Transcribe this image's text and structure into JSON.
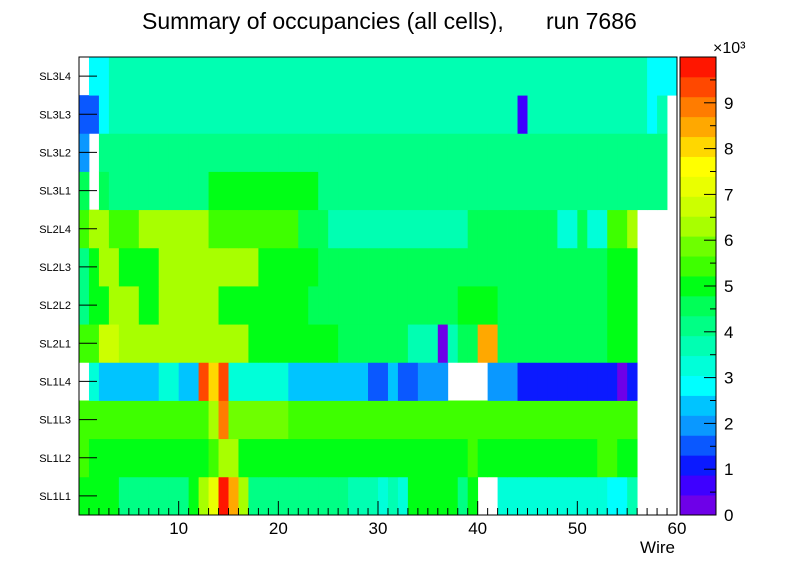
{
  "chart_data": {
    "type": "heatmap",
    "title": "Summary of occupancies (all cells),",
    "run_label": "run 7686",
    "xlabel": "Wire",
    "ylabel": "",
    "xlim": [
      0,
      60
    ],
    "x_ticks": [
      10,
      20,
      30,
      40,
      50,
      60
    ],
    "y_categories": [
      "SL1L1",
      "SL1L2",
      "SL1L3",
      "SL1L4",
      "SL2L1",
      "SL2L2",
      "SL2L3",
      "SL2L4",
      "SL3L1",
      "SL3L2",
      "SL3L3",
      "SL3L4"
    ],
    "color_scale": {
      "min": 0,
      "max": 10,
      "multiplier_label": "×10³",
      "tick_labels": [
        "0",
        "1",
        "2",
        "3",
        "4",
        "5",
        "6",
        "7",
        "8",
        "9"
      ]
    },
    "palette": [
      "#6e00e8",
      "#3e00ff",
      "#0b1aff",
      "#0a58ff",
      "#0a98ff",
      "#00c4ff",
      "#00ffff",
      "#00ffd9",
      "#00ffb2",
      "#00ff85",
      "#00ff57",
      "#00ff16",
      "#3eff00",
      "#6eff00",
      "#a8ff00",
      "#ccff00",
      "#eaff00",
      "#ffff00",
      "#ffd700",
      "#ffa800",
      "#ff7c00",
      "#ff4800",
      "#ff1600"
    ],
    "rows": [
      {
        "layer": "SL1L1",
        "values": [
          5,
          5,
          5,
          5,
          4.3,
          4.3,
          4.3,
          4.3,
          4.3,
          4.3,
          4.3,
          5,
          6.2,
          7.3,
          9.6,
          8.3,
          6.2,
          4.3,
          4.3,
          4.3,
          4.3,
          4.3,
          4.3,
          4.3,
          4.3,
          4.3,
          4.3,
          3.7,
          3.7,
          3.7,
          3.2,
          3.7,
          3.2,
          5,
          5,
          5,
          5,
          5,
          4.3,
          5,
          0,
          0,
          3.2,
          3.2,
          3.2,
          3.2,
          3.2,
          3.2,
          3.2,
          3.2,
          3.2,
          3.2,
          3.2,
          2.9,
          2.9,
          3.6,
          0,
          0,
          0,
          0
        ]
      },
      {
        "layer": "SL1L2",
        "values": [
          5.5,
          5,
          5,
          5,
          5,
          5,
          5,
          5,
          5,
          5,
          5,
          5,
          5,
          5.6,
          6.4,
          6.4,
          5,
          5,
          5,
          5,
          5,
          5,
          5,
          5,
          5,
          5,
          5,
          5,
          5,
          5,
          5,
          5,
          5,
          5,
          5,
          5,
          5,
          5,
          5,
          5.5,
          5,
          5,
          5,
          5,
          5,
          5,
          5,
          5,
          5,
          5,
          5,
          5,
          5.6,
          5.6,
          5,
          5,
          0,
          0,
          0,
          0
        ]
      },
      {
        "layer": "SL1L3",
        "values": [
          5.3,
          5.3,
          5.3,
          5.3,
          5.3,
          5.3,
          5.3,
          5.3,
          5.3,
          5.3,
          5.3,
          5.3,
          5.3,
          6.2,
          9,
          6,
          6,
          6,
          6,
          6,
          6,
          5.3,
          5.3,
          5.3,
          5.3,
          5.3,
          5.3,
          5.3,
          5.3,
          5.3,
          5.3,
          5.3,
          5.3,
          5.3,
          5.3,
          5.3,
          5.3,
          5.3,
          5.3,
          5.3,
          5.3,
          5.3,
          5.3,
          5.3,
          5.3,
          5.3,
          5.3,
          5.3,
          5.3,
          5.3,
          5.3,
          5.3,
          5.3,
          5.3,
          5.3,
          5.3,
          0,
          0,
          0,
          0
        ]
      },
      {
        "layer": "SL1L4",
        "values": [
          0,
          3.2,
          2.4,
          2.4,
          2.4,
          2.4,
          2.4,
          2.4,
          3.2,
          3.2,
          2.4,
          2.4,
          9.5,
          7.9,
          9.5,
          3.2,
          3.2,
          3.2,
          3.2,
          3.2,
          3.2,
          2.4,
          2.4,
          2.4,
          2.4,
          2.4,
          2.4,
          2.4,
          2.4,
          1.6,
          1.6,
          2.4,
          1.6,
          1.6,
          1.8,
          1.8,
          1.8,
          0,
          0,
          0,
          0,
          1.8,
          1.8,
          1.8,
          0.9,
          0.9,
          0.9,
          0.9,
          0.9,
          0.9,
          0.9,
          0.9,
          0.9,
          0.9,
          0.4,
          0.9,
          0,
          0,
          0,
          0
        ]
      },
      {
        "layer": "SL2L1",
        "values": [
          5.5,
          5.5,
          6.8,
          6.8,
          6.1,
          6.1,
          6.1,
          6.1,
          6.1,
          6.1,
          6.1,
          6.1,
          6.1,
          6.1,
          6.1,
          6.1,
          6.1,
          5,
          5,
          5,
          5,
          5,
          5,
          5,
          5,
          5,
          4.4,
          4.4,
          4.4,
          4.4,
          4.4,
          4.4,
          4.4,
          3.7,
          3.7,
          3.7,
          0.4,
          3.7,
          4.4,
          4.4,
          8.6,
          8.6,
          4.4,
          4.4,
          4.4,
          4.4,
          4.4,
          4.4,
          4.4,
          4.4,
          4.4,
          4.4,
          4.4,
          5,
          5,
          5,
          0,
          0,
          0,
          0
        ]
      },
      {
        "layer": "SL2L2",
        "values": [
          4,
          5.2,
          5.2,
          6.3,
          6.3,
          6.3,
          5.2,
          5.2,
          6.3,
          6.3,
          6.3,
          6.3,
          6.3,
          6.3,
          5.2,
          5.2,
          5.2,
          5.2,
          5.2,
          5.2,
          5.2,
          5.2,
          5.2,
          4.4,
          4.4,
          4.4,
          4.4,
          4.4,
          4.4,
          4.4,
          4.4,
          4.4,
          4.4,
          4.4,
          4.4,
          4.4,
          4.4,
          4.4,
          5.2,
          5.2,
          5.2,
          5.2,
          4.4,
          4.4,
          4.4,
          4.4,
          4.4,
          4.4,
          4.4,
          4.4,
          4.4,
          4.4,
          4.4,
          5.2,
          5.2,
          5.2,
          0,
          0,
          0,
          0
        ]
      },
      {
        "layer": "SL2L3",
        "values": [
          4,
          5,
          6.2,
          6.2,
          5.2,
          5.2,
          5.2,
          5.2,
          6.2,
          6.2,
          6.2,
          6.2,
          6.2,
          6.2,
          6.2,
          6.2,
          6.2,
          6.2,
          5.2,
          5.2,
          5.2,
          5.2,
          5.2,
          5.2,
          4.4,
          4.4,
          4.4,
          4.4,
          4.4,
          4.4,
          4.4,
          4.4,
          4.4,
          4.4,
          4.4,
          4.4,
          4.4,
          4.4,
          4.4,
          4.4,
          4.4,
          4.4,
          4.4,
          4.4,
          4.4,
          4.4,
          4.4,
          4.4,
          4.4,
          4.4,
          4.4,
          4.4,
          4.4,
          5.2,
          5.2,
          5.2,
          0,
          0,
          0,
          0
        ]
      },
      {
        "layer": "SL2L4",
        "values": [
          5.3,
          6.2,
          6.2,
          5.3,
          5.3,
          5.3,
          6.2,
          6.2,
          6.2,
          6.2,
          6.2,
          6.2,
          6.2,
          5.3,
          5.3,
          5.3,
          5.3,
          5.3,
          5.3,
          5.3,
          5.3,
          5.3,
          4.4,
          4.4,
          4.4,
          3.6,
          3.6,
          3.6,
          3.6,
          3.6,
          3.6,
          3.6,
          3.6,
          3.6,
          3.6,
          3.6,
          3.6,
          3.6,
          3.6,
          4.4,
          4.4,
          4.4,
          4.4,
          4.4,
          4.4,
          4.4,
          4.4,
          4.4,
          3.2,
          3.2,
          4.4,
          3.2,
          3.2,
          5.3,
          5.3,
          6.2,
          0,
          0,
          0,
          0
        ]
      },
      {
        "layer": "SL3L1",
        "values": [
          4.5,
          0,
          4.5,
          4.2,
          4.2,
          4.2,
          4.2,
          4.2,
          4.2,
          4.2,
          4.2,
          4.2,
          4.2,
          5,
          5,
          5,
          5,
          5,
          5,
          5,
          5,
          5,
          5,
          5,
          4.2,
          4.2,
          4.2,
          4.2,
          4.2,
          4.2,
          4.2,
          4.2,
          4.2,
          4.2,
          4.2,
          4.2,
          4.2,
          4.2,
          4.2,
          4.2,
          4.2,
          4.2,
          4.2,
          4.2,
          4.2,
          4.2,
          4.2,
          4.2,
          4.2,
          4.2,
          4.2,
          4.2,
          4.2,
          4.2,
          4.2,
          4.2,
          4.2,
          4.2,
          4.2,
          0
        ]
      },
      {
        "layer": "SL3L2",
        "values": [
          1.8,
          0,
          4,
          4,
          4,
          4,
          4,
          4,
          4,
          4,
          4,
          4,
          4,
          4,
          4,
          4,
          4,
          4,
          4,
          4,
          4,
          4,
          4,
          4,
          4,
          4,
          4,
          4,
          4,
          4,
          4,
          4,
          4,
          4,
          4,
          4,
          4,
          4,
          4,
          4,
          4,
          4,
          4,
          4,
          4,
          4,
          4,
          4,
          4,
          4,
          4,
          4,
          4,
          4,
          4,
          4,
          4,
          4,
          4,
          0
        ]
      },
      {
        "layer": "SL3L3",
        "values": [
          1.6,
          1.6,
          2.9,
          3.6,
          3.6,
          3.6,
          3.6,
          3.6,
          3.6,
          3.6,
          3.6,
          3.6,
          3.6,
          3.6,
          3.6,
          3.6,
          3.6,
          3.6,
          3.6,
          3.6,
          3.6,
          3.6,
          3.6,
          3.6,
          3.6,
          3.6,
          3.6,
          3.6,
          3.6,
          3.6,
          3.6,
          3.6,
          3.6,
          3.6,
          3.6,
          3.6,
          3.6,
          3.6,
          3.6,
          3.6,
          3.6,
          3.6,
          3.6,
          3.6,
          0.6,
          3.6,
          3.6,
          3.6,
          3.6,
          3.6,
          3.6,
          3.6,
          3.6,
          3.6,
          3.6,
          3.6,
          3.6,
          2.9,
          3.6,
          0
        ]
      },
      {
        "layer": "SL3L4",
        "values": [
          0,
          2.9,
          2.9,
          3.6,
          3.6,
          3.6,
          3.6,
          3.6,
          3.6,
          3.6,
          3.6,
          3.6,
          3.6,
          3.6,
          3.6,
          3.6,
          3.6,
          3.6,
          3.6,
          3.6,
          3.6,
          3.6,
          3.6,
          3.6,
          3.6,
          3.6,
          3.6,
          3.6,
          3.6,
          3.6,
          3.6,
          3.6,
          3.6,
          3.6,
          3.6,
          3.6,
          3.6,
          3.6,
          3.6,
          3.6,
          3.6,
          3.6,
          3.6,
          3.6,
          3.6,
          3.6,
          3.6,
          3.6,
          3.6,
          3.6,
          3.6,
          3.6,
          3.6,
          3.6,
          3.6,
          3.6,
          3.6,
          2.9,
          2.9,
          2.9
        ]
      }
    ]
  }
}
